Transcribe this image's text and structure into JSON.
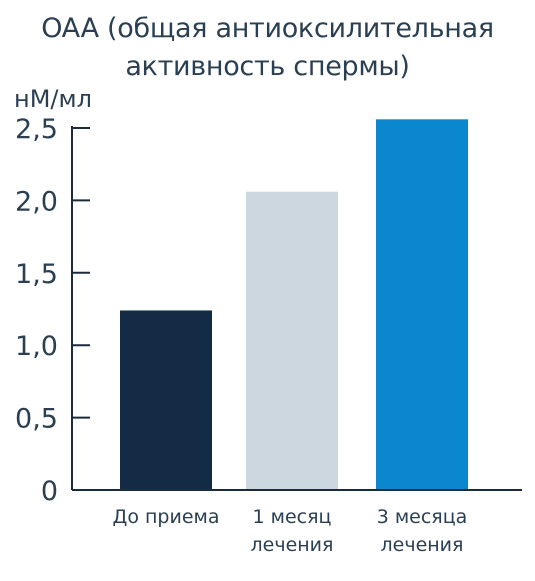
{
  "chart_data": {
    "type": "bar",
    "title_lines": [
      "OAA (общая антиоксилительная",
      "активность спермы)"
    ],
    "ylabel": "нМ/мл",
    "xlabel": "",
    "categories": [
      [
        "До приема"
      ],
      [
        "1 месяц",
        "лечения"
      ],
      [
        "3 месяца",
        "лечения"
      ]
    ],
    "values": [
      1.24,
      2.06,
      2.56
    ],
    "bar_colors": [
      "#142b45",
      "#cdd7df",
      "#0a87cf"
    ],
    "ylim": [
      0,
      2.5
    ],
    "y_ticks": [
      0,
      0.5,
      1.0,
      1.5,
      2.0,
      2.5
    ],
    "y_tick_labels": [
      "0",
      "0,5",
      "1,0",
      "1,5",
      "2,0",
      "2,5"
    ],
    "grid": false,
    "legend": "none",
    "axis_color": "#1a2b3c"
  }
}
